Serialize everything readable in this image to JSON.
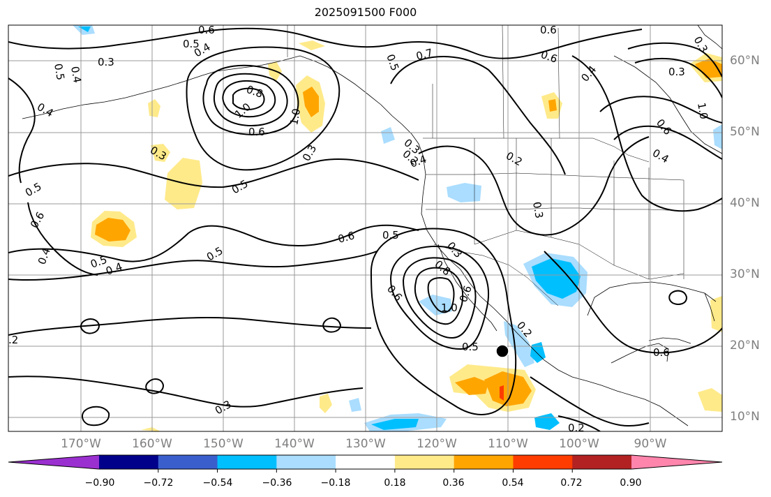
{
  "title": "2025091500 F000",
  "map": {
    "lat_labels": [
      "60°N",
      "50°N",
      "40°N",
      "30°N",
      "20°N",
      "10°N"
    ],
    "lon_labels": [
      "170°W",
      "160°W",
      "150°W",
      "140°W",
      "130°W",
      "120°W",
      "110°W",
      "100°W",
      "90°W"
    ],
    "contour_labels": [
      "0.6",
      "0.5",
      "0.4",
      "0.5",
      "0.4",
      "0.3",
      "0.4",
      "0.8",
      "1.0",
      "0.6",
      "1.0",
      "0.3",
      "0.3",
      "0.5",
      "0.5",
      "0.6",
      "0.4",
      "0.5",
      "0.4",
      "0.6",
      "0.5",
      "0.5",
      "0.6",
      "0.5",
      "0.3",
      "0.8",
      "1.0",
      "0.6",
      "0.3",
      "0.5",
      "0.2",
      "0.3",
      "0.2",
      "0.3",
      "0.4",
      "0.7",
      "0.6",
      "0.6",
      "0.4",
      "0.3",
      "0.3",
      "1.0",
      "0.6",
      "0.4",
      "0.2",
      "0.6",
      "0.2",
      ".2"
    ],
    "grid_color": "#999999"
  },
  "colorbar": {
    "ticks": [
      "−0.90",
      "−0.72",
      "−0.54",
      "−0.36",
      "−0.18",
      "0.18",
      "0.36",
      "0.54",
      "0.72",
      "0.90"
    ],
    "colors": [
      "#9b30d0",
      "#00008b",
      "#3a5fcd",
      "#00bfff",
      "#aaddff",
      "#ffffff",
      "#ffea8a",
      "#ffa500",
      "#ff3c00",
      "#b22222",
      "#ff85ad"
    ]
  }
}
